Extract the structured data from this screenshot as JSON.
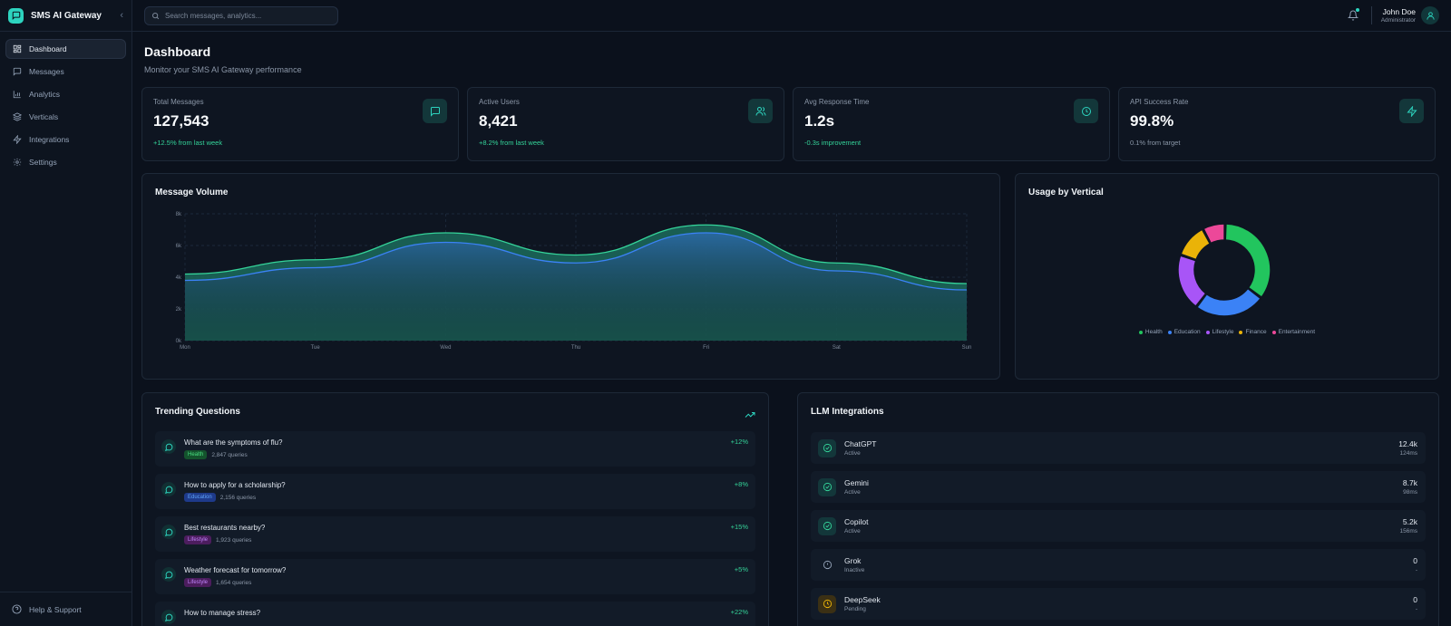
{
  "sidebar": {
    "brand": "SMS AI Gateway",
    "items": [
      {
        "label": "Dashboard"
      },
      {
        "label": "Messages"
      },
      {
        "label": "Analytics"
      },
      {
        "label": "Verticals"
      },
      {
        "label": "Integrations"
      },
      {
        "label": "Settings"
      }
    ],
    "help": "Help & Support"
  },
  "topbar": {
    "search_placeholder": "Search messages, analytics...",
    "user_name": "John Doe",
    "user_role": "Administrator"
  },
  "header": {
    "title": "Dashboard",
    "subtitle": "Monitor your SMS AI Gateway performance"
  },
  "stats": [
    {
      "label": "Total Messages",
      "value": "127,543",
      "change": "+12.5% from last week",
      "icon": "message-square-icon"
    },
    {
      "label": "Active Users",
      "value": "8,421",
      "change": "+8.2% from last week",
      "icon": "users-icon"
    },
    {
      "label": "Avg Response Time",
      "value": "1.2s",
      "change": "-0.3s improvement",
      "icon": "clock-icon"
    },
    {
      "label": "API Success Rate",
      "value": "99.8%",
      "change": "0.1% from target",
      "icon": "zap-icon"
    }
  ],
  "colors": {
    "accent": "#2dd4bf",
    "positive": "#34d399",
    "muted": "#8b97a8"
  },
  "chart_data": [
    {
      "type": "area",
      "title": "Message Volume",
      "categories": [
        "Mon",
        "Tue",
        "Wed",
        "Thu",
        "Fri",
        "Sat",
        "Sun"
      ],
      "y_ticks": [
        "0k",
        "2k",
        "4k",
        "6k",
        "8k"
      ],
      "ylim": [
        0,
        8000
      ],
      "series": [
        {
          "values": [
            3800,
            4600,
            6200,
            4900,
            6800,
            4400,
            3200
          ],
          "color": "#3b82f6"
        },
        {
          "values": [
            4200,
            5100,
            6800,
            5400,
            7300,
            4900,
            3600
          ],
          "color": "#10b981"
        }
      ],
      "grid": true
    },
    {
      "type": "pie",
      "title": "Usage by Vertical",
      "categories": [
        "Health",
        "Education",
        "Lifestyle",
        "Finance",
        "Entertainment"
      ],
      "values": [
        35,
        25,
        20,
        12,
        8
      ],
      "colors": [
        "#22c55e",
        "#3b82f6",
        "#a855f7",
        "#eab308",
        "#ec4899"
      ],
      "legend": "bottom"
    }
  ],
  "trending": {
    "title": "Trending Questions",
    "items": [
      {
        "question": "What are the symptoms of flu?",
        "tag": "Health",
        "count": "2,847 queries",
        "trend": "+12%"
      },
      {
        "question": "How to apply for a scholarship?",
        "tag": "Education",
        "count": "2,156 queries",
        "trend": "+8%"
      },
      {
        "question": "Best restaurants nearby?",
        "tag": "Lifestyle",
        "count": "1,923 queries",
        "trend": "+15%"
      },
      {
        "question": "Weather forecast for tomorrow?",
        "tag": "Lifestyle",
        "count": "1,654 queries",
        "trend": "+5%"
      },
      {
        "question": "How to manage stress?",
        "tag": "",
        "count": "",
        "trend": "+22%"
      }
    ]
  },
  "llm": {
    "title": "LLM Integrations",
    "items": [
      {
        "name": "ChatGPT",
        "status": "Active",
        "count": "12.4k",
        "latency": "124ms",
        "icon": "check-circle-icon"
      },
      {
        "name": "Gemini",
        "status": "Active",
        "count": "8.7k",
        "latency": "98ms",
        "icon": "check-circle-icon"
      },
      {
        "name": "Copilot",
        "status": "Active",
        "count": "5.2k",
        "latency": "156ms",
        "icon": "check-circle-icon"
      },
      {
        "name": "Grok",
        "status": "Inactive",
        "count": "0",
        "latency": "-",
        "icon": "alert-circle-icon"
      },
      {
        "name": "DeepSeek",
        "status": "Pending",
        "count": "0",
        "latency": "-",
        "icon": "clock-icon"
      }
    ]
  }
}
